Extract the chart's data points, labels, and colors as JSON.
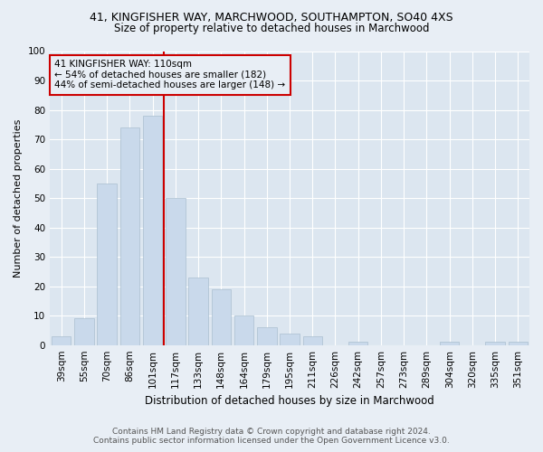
{
  "title1": "41, KINGFISHER WAY, MARCHWOOD, SOUTHAMPTON, SO40 4XS",
  "title2": "Size of property relative to detached houses in Marchwood",
  "xlabel": "Distribution of detached houses by size in Marchwood",
  "ylabel": "Number of detached properties",
  "categories": [
    "39sqm",
    "55sqm",
    "70sqm",
    "86sqm",
    "101sqm",
    "117sqm",
    "133sqm",
    "148sqm",
    "164sqm",
    "179sqm",
    "195sqm",
    "211sqm",
    "226sqm",
    "242sqm",
    "257sqm",
    "273sqm",
    "289sqm",
    "304sqm",
    "320sqm",
    "335sqm",
    "351sqm"
  ],
  "values": [
    3,
    9,
    55,
    74,
    78,
    50,
    23,
    19,
    10,
    6,
    4,
    3,
    0,
    1,
    0,
    0,
    0,
    1,
    0,
    1,
    1
  ],
  "bar_color": "#c9d9eb",
  "bar_edgecolor": "#aabfcf",
  "vline_bin_index": 4.5,
  "vline_color": "#cc0000",
  "annotation_text": "41 KINGFISHER WAY: 110sqm\n← 54% of detached houses are smaller (182)\n44% of semi-detached houses are larger (148) →",
  "annotation_box_edgecolor": "#cc0000",
  "annotation_box_facecolor": "#e8eef5",
  "ylim": [
    0,
    100
  ],
  "yticks": [
    0,
    10,
    20,
    30,
    40,
    50,
    60,
    70,
    80,
    90,
    100
  ],
  "footer1": "Contains HM Land Registry data © Crown copyright and database right 2024.",
  "footer2": "Contains public sector information licensed under the Open Government Licence v3.0.",
  "bg_color": "#e8eef5",
  "plot_bg_color": "#dce6f0",
  "title1_fontsize": 9.0,
  "title2_fontsize": 8.5,
  "ylabel_fontsize": 8.0,
  "xlabel_fontsize": 8.5,
  "tick_fontsize": 7.5,
  "footer_fontsize": 6.5
}
